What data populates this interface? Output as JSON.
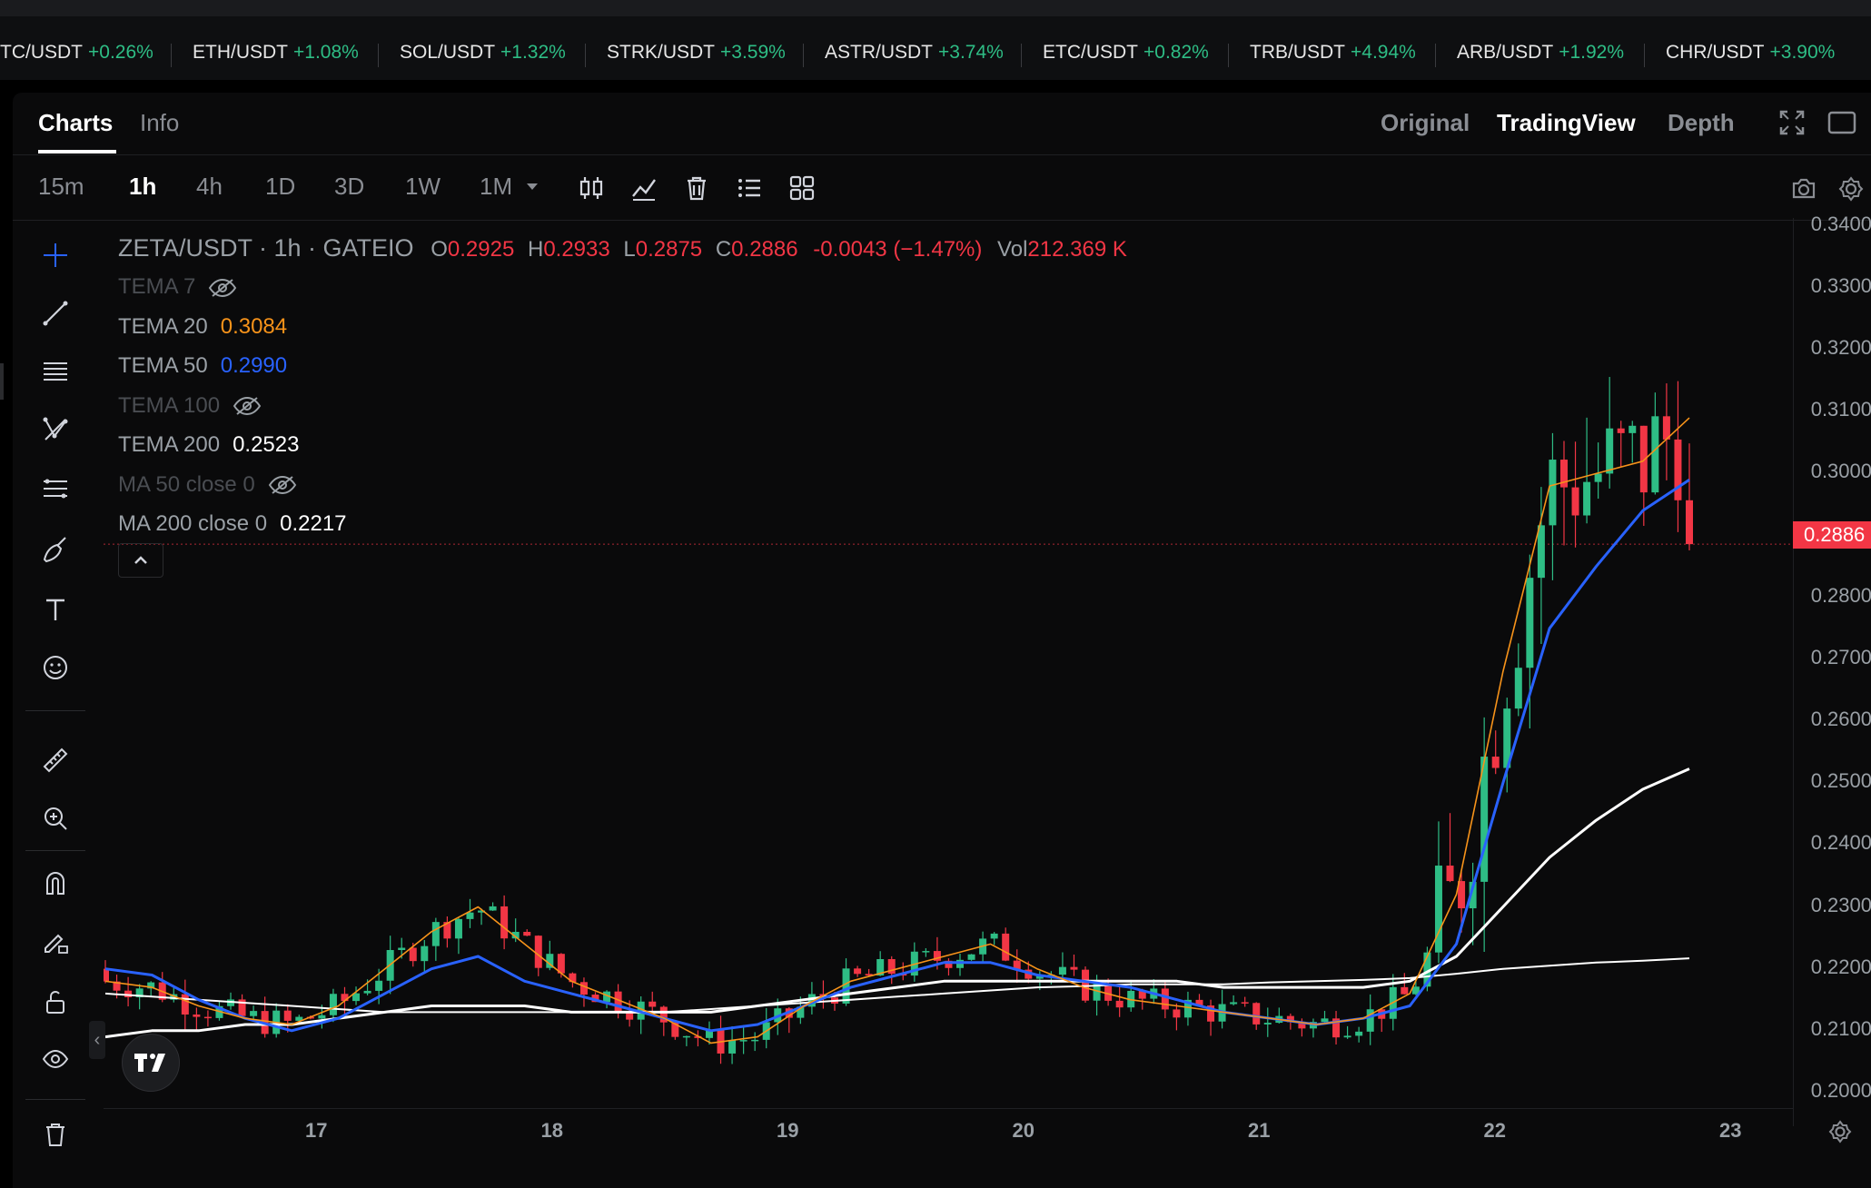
{
  "ticker": [
    {
      "symbol": "TC/USDT",
      "change": "+0.26%"
    },
    {
      "symbol": "ETH/USDT",
      "change": "+1.08%"
    },
    {
      "symbol": "SOL/USDT",
      "change": "+1.32%"
    },
    {
      "symbol": "STRK/USDT",
      "change": "+3.59%"
    },
    {
      "symbol": "ASTR/USDT",
      "change": "+3.74%"
    },
    {
      "symbol": "ETC/USDT",
      "change": "+0.82%"
    },
    {
      "symbol": "TRB/USDT",
      "change": "+4.94%"
    },
    {
      "symbol": "ARB/USDT",
      "change": "+1.92%"
    },
    {
      "symbol": "CHR/USDT",
      "change": "+3.90%"
    }
  ],
  "tabs": {
    "charts": "Charts",
    "info": "Info"
  },
  "views": {
    "original": "Original",
    "tradingview": "TradingView",
    "depth": "Depth",
    "active": "TradingView"
  },
  "timeframes": [
    "15m",
    "1h",
    "4h",
    "1D",
    "3D",
    "1W",
    "1M"
  ],
  "active_timeframe": "1h",
  "legend": {
    "symbol": "ZETA/USDT · 1h · GATEIO",
    "o_label": "O",
    "o": "0.2925",
    "h_label": "H",
    "h": "0.2933",
    "l_label": "L",
    "l": "0.2875",
    "c_label": "C",
    "c": "0.2886",
    "change": "-0.0043 (−1.47%)",
    "vol_label": "Vol",
    "vol": "212.369 K",
    "indicators": [
      {
        "name": "TEMA 7",
        "value": "",
        "hidden": true
      },
      {
        "name": "TEMA 20",
        "value": "0.3084",
        "hidden": false,
        "color": "#f7931a"
      },
      {
        "name": "TEMA 50",
        "value": "0.2990",
        "hidden": false,
        "color": "#2962ff"
      },
      {
        "name": "TEMA 100",
        "value": "",
        "hidden": true
      },
      {
        "name": "TEMA 200",
        "value": "0.2523",
        "hidden": false,
        "color": "#ffffff"
      },
      {
        "name": "MA 50 close 0",
        "value": "",
        "hidden": true
      },
      {
        "name": "MA 200 close 0",
        "value": "0.2217",
        "hidden": false,
        "color": "#ffffff"
      }
    ]
  },
  "current_price": "0.2886",
  "colors": {
    "up": "#2ebd85",
    "down": "#f23645",
    "tema20": "#f7931a",
    "tema50": "#2962ff",
    "tema200": "#ffffff",
    "ma200": "#ffffff"
  },
  "tools": [
    "crosshair-icon",
    "trend-line-icon",
    "horizontal-lines-icon",
    "pattern-icon",
    "fib-icon",
    "brush-icon",
    "text-icon",
    "emoji-icon",
    "ruler-icon",
    "zoom-in-icon",
    "magnet-icon",
    "pencil-lock-icon",
    "unlock-icon",
    "eye-icon",
    "trash-icon"
  ],
  "chart_data": {
    "type": "candlestick",
    "symbol": "ZETA/USDT",
    "interval": "1h",
    "y_axis_labels": [
      "0.3400",
      "0.3300",
      "0.3200",
      "0.3100",
      "0.3000",
      "0.2900",
      "0.2800",
      "0.2700",
      "0.2600",
      "0.2500",
      "0.2400",
      "0.2300",
      "0.2200",
      "0.2100",
      "0.2000"
    ],
    "ylim": [
      0.1975,
      0.341
    ],
    "x_axis_labels": [
      "17",
      "18",
      "19",
      "20",
      "21",
      "22",
      "23"
    ],
    "tema20": [
      0.218,
      0.217,
      0.214,
      0.212,
      0.211,
      0.214,
      0.22,
      0.226,
      0.23,
      0.224,
      0.218,
      0.215,
      0.212,
      0.208,
      0.209,
      0.214,
      0.218,
      0.22,
      0.222,
      0.224,
      0.22,
      0.217,
      0.215,
      0.214,
      0.213,
      0.212,
      0.211,
      0.212,
      0.216,
      0.232,
      0.268,
      0.298,
      0.3,
      0.302,
      0.309
    ],
    "tema50": [
      0.22,
      0.219,
      0.215,
      0.212,
      0.21,
      0.212,
      0.216,
      0.22,
      0.222,
      0.218,
      0.216,
      0.214,
      0.212,
      0.21,
      0.211,
      0.214,
      0.217,
      0.219,
      0.221,
      0.221,
      0.219,
      0.218,
      0.217,
      0.215,
      0.213,
      0.212,
      0.211,
      0.212,
      0.214,
      0.224,
      0.25,
      0.275,
      0.285,
      0.294,
      0.299
    ],
    "tema200": [
      0.209,
      0.21,
      0.21,
      0.211,
      0.211,
      0.212,
      0.213,
      0.214,
      0.214,
      0.214,
      0.213,
      0.213,
      0.213,
      0.213,
      0.214,
      0.215,
      0.216,
      0.217,
      0.218,
      0.218,
      0.218,
      0.218,
      0.218,
      0.218,
      0.217,
      0.217,
      0.217,
      0.217,
      0.218,
      0.222,
      0.23,
      0.238,
      0.244,
      0.249,
      0.2523
    ],
    "ma200": [
      0.216,
      0.2155,
      0.215,
      0.2145,
      0.214,
      0.2135,
      0.213,
      0.213,
      0.213,
      0.213,
      0.213,
      0.213,
      0.213,
      0.2135,
      0.214,
      0.2145,
      0.215,
      0.2155,
      0.216,
      0.2165,
      0.217,
      0.2172,
      0.2175,
      0.2175,
      0.2175,
      0.2178,
      0.218,
      0.2182,
      0.2185,
      0.2192,
      0.22,
      0.2205,
      0.221,
      0.2213,
      0.2217
    ]
  }
}
